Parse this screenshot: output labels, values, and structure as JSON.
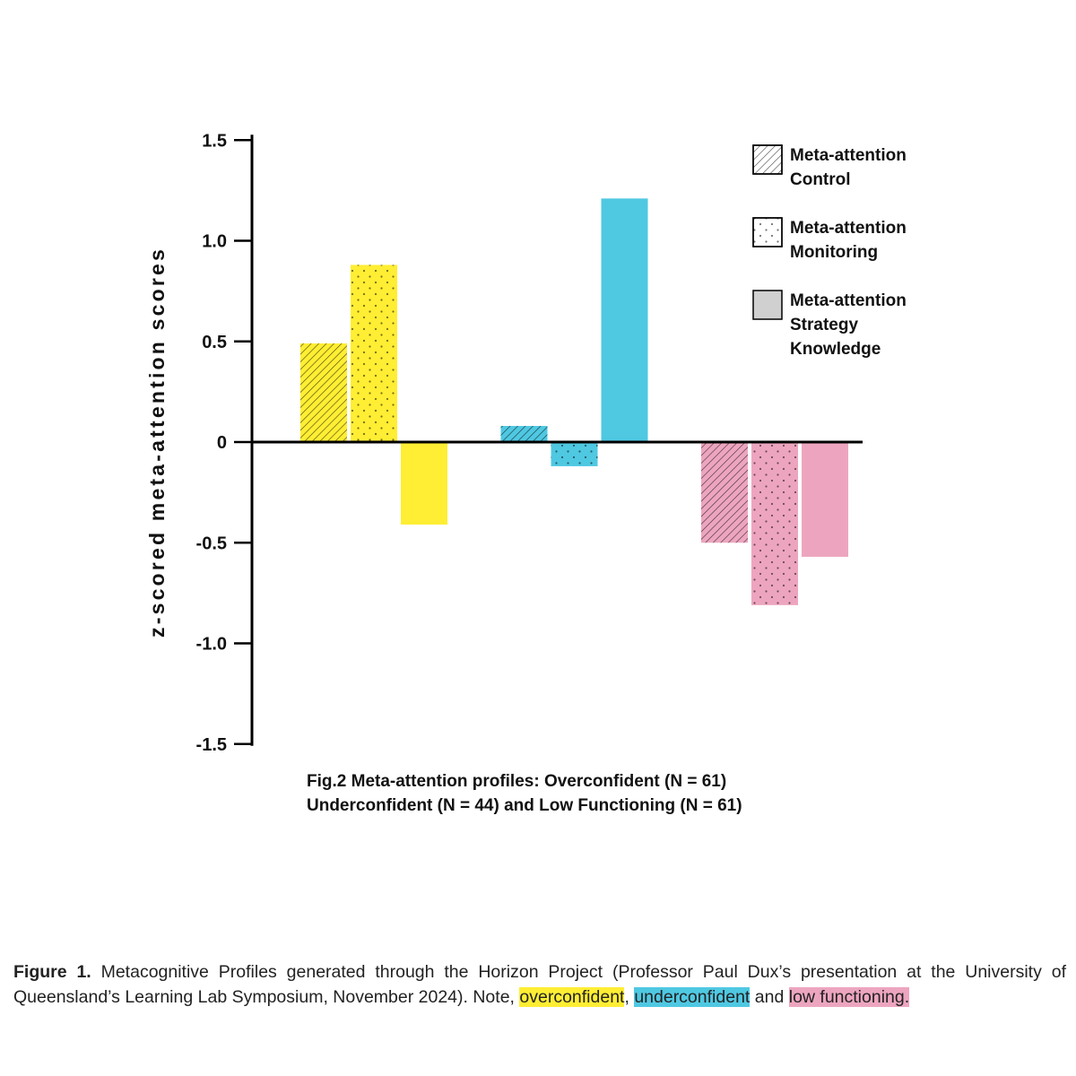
{
  "chart_data": {
    "type": "bar",
    "categories": [
      "Overconfident",
      "Underconfident",
      "Low Functioning"
    ],
    "category_colors": [
      "#ffee33",
      "#4fc8e2",
      "#eda5bf"
    ],
    "series": [
      {
        "name": "Meta-attention Control",
        "pattern": "hatched",
        "values": [
          0.49,
          0.08,
          -0.5
        ]
      },
      {
        "name": "Meta-attention Monitoring",
        "pattern": "dotted",
        "values": [
          0.88,
          -0.12,
          -0.81
        ]
      },
      {
        "name": "Meta-attention Strategy Knowledge",
        "pattern": "solid",
        "values": [
          -0.41,
          1.21,
          -0.57
        ]
      }
    ],
    "ylabel": "z-scored meta-attention scores",
    "yticks": [
      "1.5",
      "1.0",
      "0.5",
      "0",
      "-0.5",
      "-1.0",
      "-1.5"
    ],
    "ylim": [
      -1.5,
      1.5
    ],
    "legend": {
      "placement": "top-right",
      "entries": [
        {
          "lines": [
            "Meta-attention",
            "Control"
          ],
          "pattern": "hatched"
        },
        {
          "lines": [
            "Meta-attention",
            "Monitoring"
          ],
          "pattern": "dotted"
        },
        {
          "lines": [
            "Meta-attention",
            "Strategy",
            "Knowledge"
          ],
          "pattern": "solid"
        }
      ]
    },
    "caption": [
      "Fig.2 Meta-attention profiles: Overconfident (N = 61)",
      "Underconfident (N = 44) and Low Functioning (N = 61)"
    ],
    "grid": false
  },
  "figure_note": {
    "label": "Figure 1.",
    "text": "Metacognitive Profiles generated through the Horizon Project (Professor Paul Dux’s presentation at the University of Queensland’s Learning Lab Symposium, November 2024). Note,",
    "overconfident": "overconfident",
    "sep1": ",",
    "underconfident": "underconfident",
    "sep2": "and",
    "low_functioning": "low functioning."
  }
}
